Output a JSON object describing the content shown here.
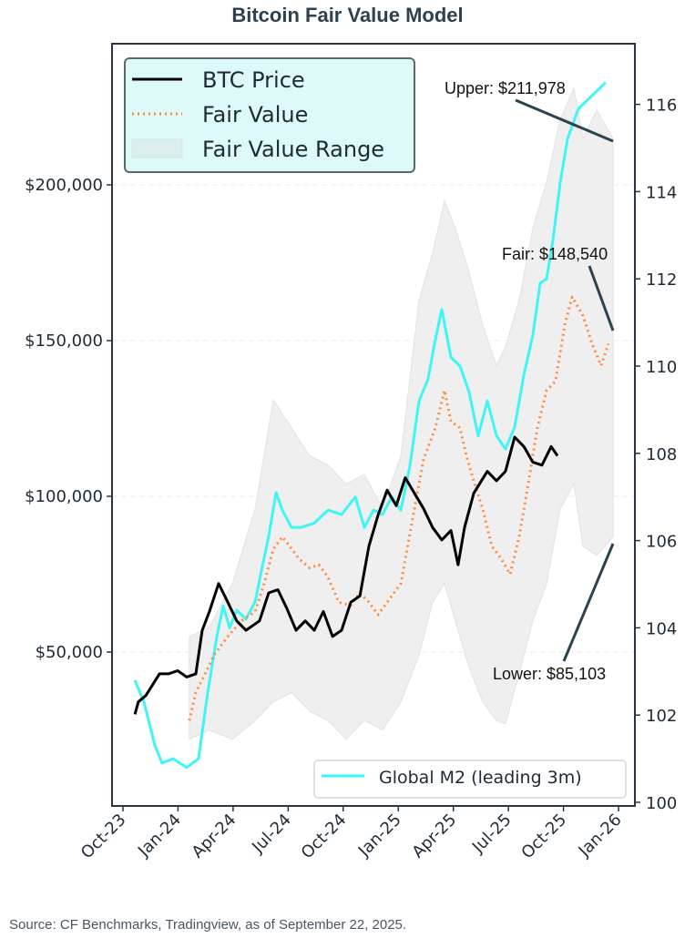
{
  "title": "Bitcoin Fair Value Model",
  "source": "Source: CF Benchmarks, Tradingview, as of September 22, 2025.",
  "colors": {
    "btc": "#000000",
    "fair": "#ff8c3a",
    "band": "#e8e8e8",
    "m2": "#3ff5f5",
    "axis": "#2b3642",
    "annot_line": "#2b4350",
    "legend_bg": "#ddfaf8"
  },
  "chart_data": {
    "type": "line",
    "title": "Bitcoin Fair Value Model",
    "xlabel": "",
    "ylabel": "",
    "y2label": "",
    "x_unit": "months since Oct-23",
    "xlim": [
      -0.6,
      27.9
    ],
    "ylim": [
      -5000,
      240000
    ],
    "y2lim": [
      99.9,
      116.9
    ],
    "grid": true,
    "x_ticks": [
      {
        "label": "Oct-23",
        "x": 0
      },
      {
        "label": "Jan-24",
        "x": 3
      },
      {
        "label": "Apr-24",
        "x": 6
      },
      {
        "label": "Jul-24",
        "x": 9
      },
      {
        "label": "Oct-24",
        "x": 12
      },
      {
        "label": "Jan-25",
        "x": 15
      },
      {
        "label": "Apr-25",
        "x": 18
      },
      {
        "label": "Jul-25",
        "x": 21
      },
      {
        "label": "Oct-25",
        "x": 24
      },
      {
        "label": "Jan-26",
        "x": 27
      }
    ],
    "y_ticks": [
      {
        "label": "$50,000",
        "y": 50000
      },
      {
        "label": "$100,000",
        "y": 100000
      },
      {
        "label": "$150,000",
        "y": 150000
      },
      {
        "label": "$200,000",
        "y": 200000
      }
    ],
    "y2_ticks": [
      {
        "label": "100",
        "y": 100
      },
      {
        "label": "102",
        "y": 102
      },
      {
        "label": "104",
        "y": 104
      },
      {
        "label": "106",
        "y": 106
      },
      {
        "label": "108",
        "y": 108
      },
      {
        "label": "110",
        "y": 110
      },
      {
        "label": "112",
        "y": 112
      },
      {
        "label": "114",
        "y": 114
      },
      {
        "label": "116",
        "y": 116
      }
    ],
    "legend": {
      "position": "top-left",
      "entries": [
        "BTC Price",
        "Fair Value",
        "Fair Value Range"
      ]
    },
    "legend2": {
      "position": "bottom-right",
      "entries": [
        "Global M2 (leading 3m)"
      ]
    },
    "series": [
      {
        "name": "BTC Price",
        "axis": "left",
        "style": "solid",
        "x": [
          0.65,
          0.84,
          1.24,
          1.99,
          2.48,
          2.98,
          3.47,
          3.97,
          4.32,
          4.71,
          5.21,
          5.71,
          6.2,
          6.7,
          7.44,
          7.94,
          8.44,
          8.93,
          9.43,
          9.93,
          10.42,
          10.92,
          11.42,
          11.91,
          12.41,
          12.91,
          13.4,
          13.9,
          14.39,
          14.89,
          15.38,
          15.88,
          16.38,
          16.87,
          17.37,
          17.87,
          18.26,
          18.61,
          19.11,
          19.85,
          20.35,
          20.84,
          21.34,
          21.84,
          22.33,
          22.83,
          23.33,
          23.67
        ],
        "values": [
          30000,
          34000,
          36000,
          43000,
          43000,
          44000,
          42000,
          43000,
          57000,
          63000,
          72000,
          66000,
          60000,
          57000,
          60000,
          69000,
          70000,
          64000,
          57000,
          60000,
          57000,
          63000,
          55000,
          57000,
          66000,
          68000,
          84000,
          94000,
          102000,
          97000,
          106000,
          101000,
          96000,
          90000,
          86000,
          89000,
          78000,
          90000,
          101000,
          108000,
          105000,
          108000,
          119000,
          116000,
          111000,
          110000,
          116000,
          113000
        ]
      },
      {
        "name": "Fair Value",
        "axis": "left",
        "style": "dotted",
        "x": [
          3.62,
          3.97,
          4.47,
          4.96,
          5.71,
          6.45,
          7.2,
          7.69,
          8.19,
          8.68,
          9.08,
          9.58,
          10.17,
          10.67,
          11.17,
          11.76,
          12.41,
          12.9,
          13.4,
          13.9,
          14.39,
          15.14,
          15.88,
          16.38,
          17.02,
          17.52,
          17.87,
          18.36,
          18.71,
          19.11,
          19.6,
          20.1,
          20.6,
          21.09,
          21.59,
          22.08,
          22.58,
          23.08,
          23.57,
          24.07,
          24.47,
          25.06,
          25.56,
          26.05,
          26.45
        ],
        "values": [
          28000,
          37000,
          43000,
          49000,
          55000,
          60000,
          63000,
          72000,
          83000,
          87000,
          84000,
          80000,
          77000,
          78000,
          74000,
          66000,
          65000,
          69000,
          66000,
          62000,
          66000,
          72000,
          96000,
          112000,
          122000,
          134000,
          124000,
          122000,
          113000,
          105000,
          96000,
          84000,
          80000,
          75000,
          87000,
          104000,
          122000,
          134000,
          137000,
          155000,
          164000,
          158000,
          149000,
          142000,
          149000
        ]
      },
      {
        "name": "Global M2 (leading 3m)",
        "axis": "right",
        "style": "solid",
        "x": [
          0.65,
          1.14,
          1.74,
          2.13,
          2.73,
          3.47,
          4.12,
          4.61,
          5.11,
          5.46,
          5.81,
          6.2,
          6.7,
          7.2,
          7.59,
          7.94,
          8.34,
          8.68,
          9.18,
          9.68,
          10.42,
          11.17,
          11.91,
          12.66,
          13.15,
          13.65,
          14.14,
          14.64,
          15.14,
          15.63,
          16.13,
          16.62,
          16.97,
          17.37,
          17.87,
          18.36,
          18.86,
          19.35,
          19.85,
          20.35,
          20.84,
          21.34,
          21.84,
          22.33,
          22.73,
          23.08,
          23.43,
          23.82,
          24.22,
          24.81,
          25.56,
          26.3
        ],
        "values": [
          102.8,
          102.3,
          101.3,
          100.9,
          101.0,
          100.8,
          101.0,
          102.5,
          103.8,
          104.5,
          104.0,
          104.4,
          104.2,
          104.6,
          105.4,
          106.1,
          107.1,
          106.7,
          106.3,
          106.3,
          106.4,
          106.7,
          106.6,
          107.0,
          106.3,
          106.7,
          106.6,
          107.0,
          106.7,
          107.7,
          109.2,
          109.7,
          110.5,
          111.3,
          110.2,
          110.0,
          109.4,
          108.4,
          109.2,
          108.4,
          108.1,
          108.6,
          109.8,
          110.7,
          111.9,
          112.0,
          112.9,
          114.2,
          115.2,
          115.9,
          116.2,
          116.5
        ]
      }
    ],
    "band": {
      "name": "Fair Value Range",
      "axis": "left",
      "x": [
        3.62,
        4.71,
        5.96,
        7.2,
        8.19,
        9.18,
        10.17,
        11.17,
        12.16,
        13.15,
        14.14,
        15.14,
        16.13,
        16.87,
        17.52,
        18.11,
        18.86,
        19.6,
        20.35,
        20.84,
        21.59,
        22.33,
        23.08,
        23.82,
        24.57,
        25.06,
        25.81,
        26.7
      ],
      "upper": [
        55000,
        58000,
        72000,
        96000,
        131000,
        122000,
        113000,
        110000,
        104000,
        107000,
        96000,
        113000,
        163000,
        178000,
        195000,
        186000,
        172000,
        155000,
        142000,
        148000,
        163000,
        186000,
        201000,
        221000,
        231000,
        215000,
        224000,
        215000
      ],
      "lower": [
        22000,
        25000,
        22000,
        28000,
        34000,
        37000,
        31000,
        28000,
        22000,
        28000,
        25000,
        34000,
        49000,
        66000,
        72000,
        60000,
        45000,
        34000,
        28000,
        27000,
        43000,
        60000,
        72000,
        96000,
        104000,
        84000,
        81000,
        87000
      ]
    },
    "annotations": [
      {
        "text": "Upper: $211,978",
        "value": 211978
      },
      {
        "text": "Fair: $148,540",
        "value": 148540
      },
      {
        "text": "Lower: $85,103",
        "value": 85103
      }
    ]
  }
}
